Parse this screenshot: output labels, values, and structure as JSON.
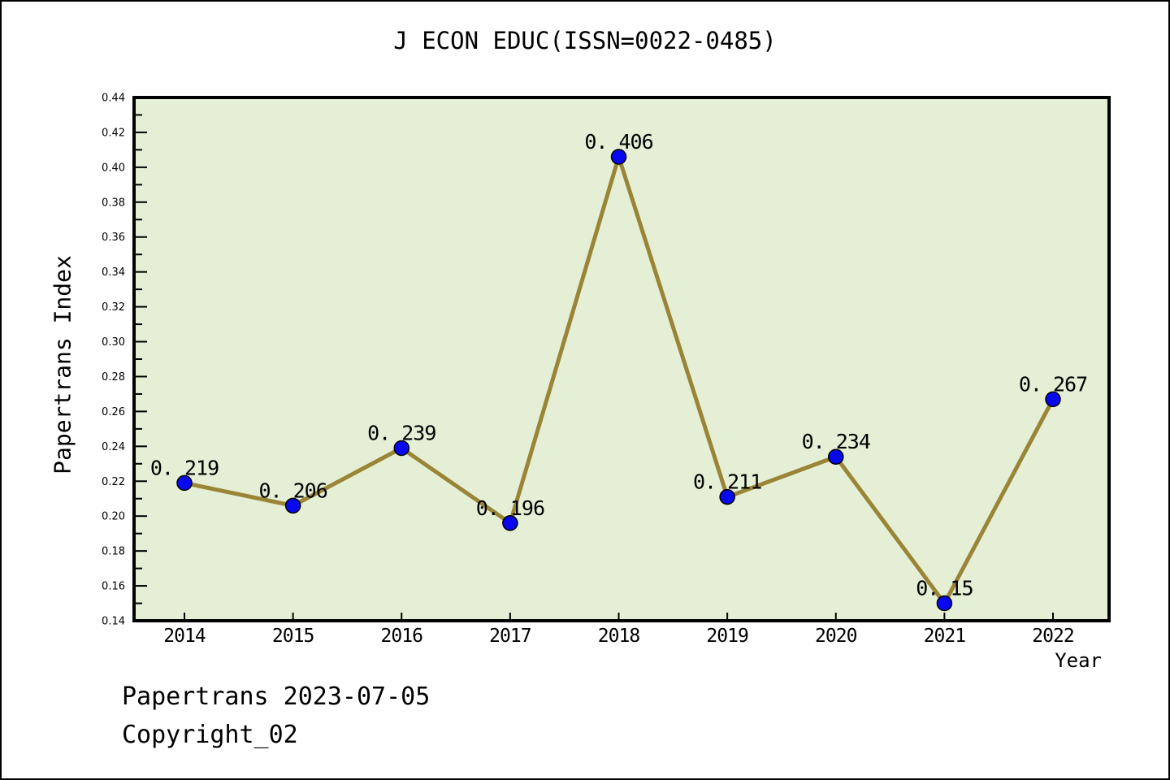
{
  "page": {
    "background_color": "#ffffff",
    "border_color": "#000000"
  },
  "chart_data": {
    "type": "line",
    "title": "J ECON EDUC(ISSN=0022-0485)",
    "xlabel": "Year",
    "ylabel": "Papertrans Index",
    "categories": [
      2014,
      2015,
      2016,
      2017,
      2018,
      2019,
      2020,
      2021,
      2022
    ],
    "values": [
      0.219,
      0.206,
      0.239,
      0.196,
      0.406,
      0.211,
      0.234,
      0.15,
      0.267
    ],
    "point_labels": [
      "0. 219",
      "0. 206",
      "0. 239",
      "0. 196",
      "0. 406",
      "0. 211",
      "0. 234",
      "0. 15",
      "0. 267"
    ],
    "x_tick_labels": [
      "2014",
      "2015",
      "2016",
      "2017",
      "2018",
      "2019",
      "2020",
      "2021",
      "2022"
    ],
    "y_tick_labels": [
      "0.14",
      "0.16",
      "0.18",
      "0.20",
      "0.22",
      "0.24",
      "0.26",
      "0.28",
      "0.30",
      "0.32",
      "0.34",
      "0.36",
      "0.38",
      "0.40",
      "0.42",
      "0.44"
    ],
    "ylim": [
      0.14,
      0.44
    ],
    "y_major_step": 0.02,
    "y_minor_step": 0.01,
    "grid": "off",
    "legend": "none",
    "colors": {
      "line": "#9a8536",
      "marker_fill": "#0808ee",
      "marker_edge": "#000000",
      "plot_background": "#e4efd6",
      "axis": "#000000",
      "text": "#000000"
    }
  },
  "footer": {
    "line1": "Papertrans 2023-07-05",
    "line2": "Copyright_02"
  }
}
